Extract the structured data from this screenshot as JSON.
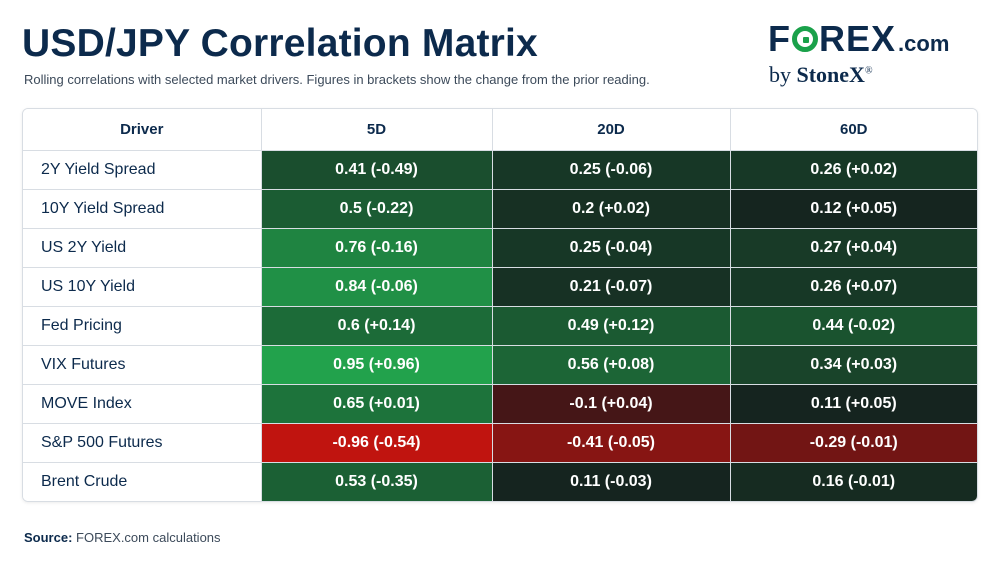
{
  "header": {
    "title": "USD/JPY Correlation Matrix",
    "subtitle": "Rolling correlations with selected market drivers. Figures in brackets show the change from the prior reading."
  },
  "logo": {
    "main_left": "F",
    "main_right": "REX",
    "dotcom": ".com",
    "by": "by",
    "brand": "StoneX",
    "mark": "®"
  },
  "footer": {
    "source_label": "Source:",
    "source_text": "FOREX.com calculations"
  },
  "colors": {
    "strong_positive": "#22a24c",
    "neutral": "#14171a",
    "negative": "#c0140f"
  },
  "chart_data": {
    "type": "table",
    "columns": [
      "Driver",
      "5D",
      "20D",
      "60D"
    ],
    "rows": [
      {
        "driver": "2Y Yield Spread",
        "values": [
          0.41,
          0.25,
          0.26
        ],
        "changes": [
          -0.49,
          -0.06,
          0.02
        ],
        "labels": [
          "0.41 (-0.49)",
          "0.25 (-0.06)",
          "0.26 (+0.02)"
        ]
      },
      {
        "driver": "10Y Yield Spread",
        "values": [
          0.5,
          0.2,
          0.12
        ],
        "changes": [
          -0.22,
          0.02,
          0.05
        ],
        "labels": [
          "0.5 (-0.22)",
          "0.2 (+0.02)",
          "0.12 (+0.05)"
        ]
      },
      {
        "driver": "US 2Y Yield",
        "values": [
          0.76,
          0.25,
          0.27
        ],
        "changes": [
          -0.16,
          -0.04,
          0.04
        ],
        "labels": [
          "0.76 (-0.16)",
          "0.25 (-0.04)",
          "0.27 (+0.04)"
        ]
      },
      {
        "driver": "US 10Y Yield",
        "values": [
          0.84,
          0.21,
          0.26
        ],
        "changes": [
          -0.06,
          -0.07,
          0.07
        ],
        "labels": [
          "0.84 (-0.06)",
          "0.21 (-0.07)",
          "0.26 (+0.07)"
        ]
      },
      {
        "driver": "Fed Pricing",
        "values": [
          0.6,
          0.49,
          0.44
        ],
        "changes": [
          0.14,
          0.12,
          -0.02
        ],
        "labels": [
          "0.6 (+0.14)",
          "0.49 (+0.12)",
          "0.44 (-0.02)"
        ]
      },
      {
        "driver": "VIX Futures",
        "values": [
          0.95,
          0.56,
          0.34
        ],
        "changes": [
          0.96,
          0.08,
          0.03
        ],
        "labels": [
          "0.95 (+0.96)",
          "0.56 (+0.08)",
          "0.34 (+0.03)"
        ]
      },
      {
        "driver": "MOVE Index",
        "values": [
          0.65,
          -0.1,
          0.11
        ],
        "changes": [
          0.01,
          0.04,
          0.05
        ],
        "labels": [
          "0.65 (+0.01)",
          "-0.1 (+0.04)",
          "0.11 (+0.05)"
        ]
      },
      {
        "driver": "S&P 500 Futures",
        "values": [
          -0.96,
          -0.41,
          -0.29
        ],
        "changes": [
          -0.54,
          -0.05,
          -0.01
        ],
        "labels": [
          "-0.96 (-0.54)",
          "-0.41 (-0.05)",
          "-0.29 (-0.01)"
        ]
      },
      {
        "driver": "Brent Crude",
        "values": [
          0.53,
          0.11,
          0.16
        ],
        "changes": [
          -0.35,
          -0.03,
          -0.01
        ],
        "labels": [
          "0.53 (-0.35)",
          "0.11 (-0.03)",
          "0.16 (-0.01)"
        ]
      }
    ]
  }
}
